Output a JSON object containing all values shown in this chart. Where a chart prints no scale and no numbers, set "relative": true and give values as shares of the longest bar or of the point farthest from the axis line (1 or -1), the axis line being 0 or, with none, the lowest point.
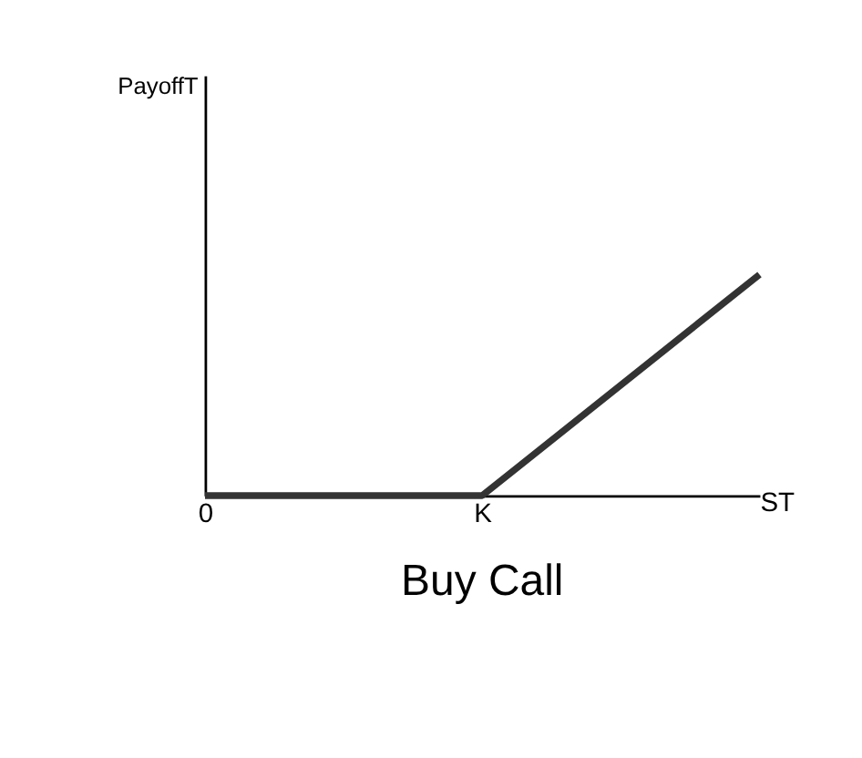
{
  "chart_data": {
    "type": "line",
    "title": "Buy Call",
    "xlabel": "ST",
    "annotations": [
      "PayoffT"
    ],
    "relative": true,
    "categories": [
      "0",
      "K",
      null
    ],
    "series": [
      {
        "color": "#333333",
        "values": [
          0,
          0,
          1
        ]
      }
    ],
    "grid": false,
    "legend": false,
    "marker": "none",
    "line_style": "solid"
  }
}
